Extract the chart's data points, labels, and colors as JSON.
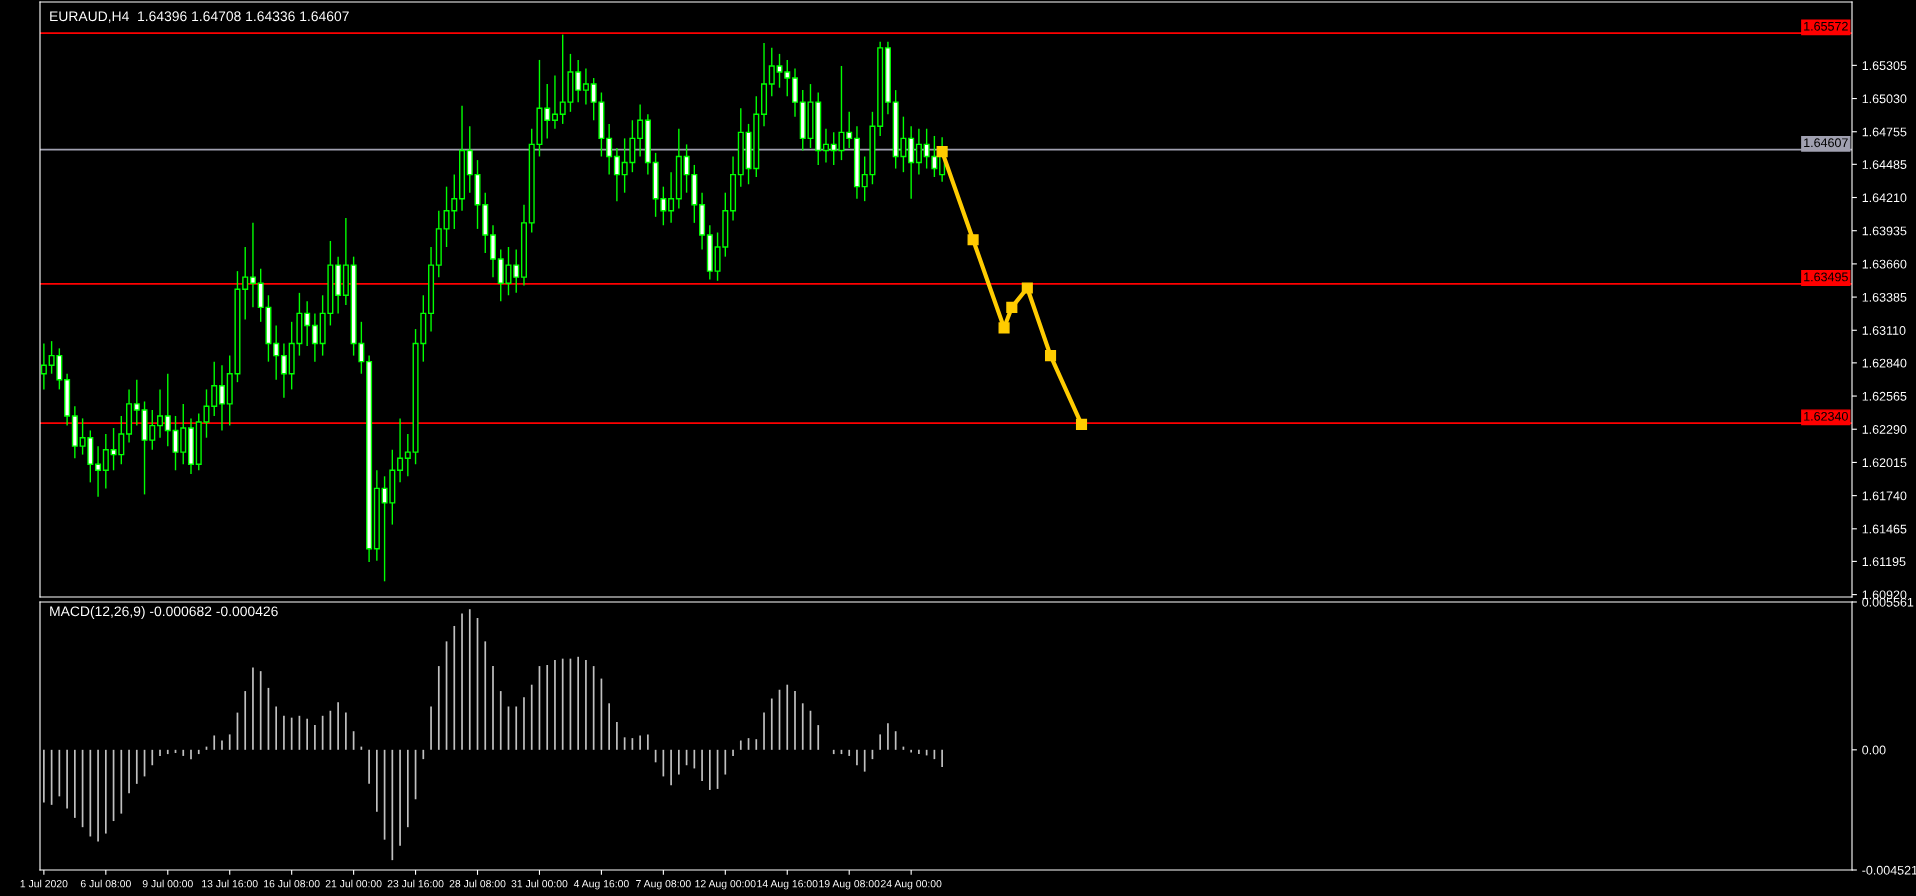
{
  "chart_data": [
    {
      "type": "candlestick",
      "title": "EURAUD,H4  1.64396 1.64708 1.64336 1.64607",
      "color": "#00ff00",
      "marker": "square",
      "grid": false,
      "legend": false,
      "tick_labels": "y",
      "categories": [
        null,
        null,
        null,
        null,
        null,
        null,
        null,
        null,
        null,
        null,
        null,
        null,
        null,
        null,
        null,
        null,
        null,
        null,
        null,
        null,
        null,
        null,
        null,
        null,
        null,
        null,
        null,
        null,
        null,
        null,
        null,
        null,
        null,
        null,
        null,
        null,
        null,
        null,
        null,
        null,
        null,
        null,
        null,
        null,
        null,
        null,
        null,
        null,
        null,
        null,
        null,
        null,
        null,
        null,
        null,
        null,
        null,
        null,
        null,
        null,
        null,
        null,
        null,
        null,
        null,
        null,
        null,
        null,
        null,
        null,
        null,
        null,
        null,
        null,
        null,
        null,
        null,
        null,
        null,
        null,
        null,
        null,
        null,
        null,
        null,
        null,
        null,
        null,
        null,
        null,
        null,
        null,
        null,
        null,
        null,
        null,
        null,
        null,
        null,
        null,
        null,
        null,
        null,
        null,
        null,
        null,
        null,
        null,
        null,
        null,
        null,
        null,
        null,
        null,
        null,
        null,
        null,
        null,
        null,
        null,
        null,
        null,
        null,
        null,
        null,
        null,
        null,
        null,
        null,
        null,
        null,
        null,
        null,
        null,
        null,
        null,
        null,
        null,
        null,
        null,
        null,
        null,
        null,
        null,
        null,
        null,
        null,
        null,
        null,
        null,
        null,
        null,
        null,
        null,
        null,
        null,
        null,
        null,
        null,
        null,
        null,
        null,
        null,
        null,
        null,
        null,
        null,
        null,
        null,
        null,
        null,
        null,
        null,
        null,
        null,
        null,
        null,
        null,
        null,
        null,
        null,
        null,
        null,
        null,
        null,
        null,
        null,
        null,
        null,
        null,
        null,
        null,
        null,
        null,
        null,
        null,
        null,
        null,
        null,
        null,
        null,
        null,
        null,
        null,
        null,
        null,
        null,
        null,
        null,
        null,
        null,
        null,
        null,
        null,
        null,
        null,
        null,
        null,
        null,
        null,
        null,
        null,
        null,
        null,
        null,
        null,
        null,
        null,
        null,
        null,
        null,
        null,
        null,
        null
      ],
      "ohlc": [
        [
          1.6275,
          1.63,
          1.6262,
          1.6282
        ],
        [
          1.6282,
          1.6302,
          1.6275,
          1.629
        ],
        [
          1.629,
          1.6296,
          1.6262,
          1.627
        ],
        [
          1.627,
          1.6275,
          1.6232,
          1.624
        ],
        [
          1.624,
          1.6248,
          1.6205,
          1.6215
        ],
        [
          1.6215,
          1.6238,
          1.6208,
          1.6222
        ],
        [
          1.6222,
          1.6228,
          1.6185,
          1.62
        ],
        [
          1.62,
          1.6215,
          1.6173,
          1.6195
        ],
        [
          1.6195,
          1.6225,
          1.618,
          1.6212
        ],
        [
          1.6212,
          1.623,
          1.6195,
          1.6208
        ],
        [
          1.6208,
          1.624,
          1.62,
          1.6225
        ],
        [
          1.6225,
          1.6262,
          1.6218,
          1.625
        ],
        [
          1.625,
          1.627,
          1.6232,
          1.6245
        ],
        [
          1.6245,
          1.6252,
          1.6175,
          1.622
        ],
        [
          1.622,
          1.6245,
          1.6212,
          1.6232
        ],
        [
          1.6232,
          1.6262,
          1.6222,
          1.624
        ],
        [
          1.624,
          1.6275,
          1.6215,
          1.6228
        ],
        [
          1.6228,
          1.624,
          1.6195,
          1.621
        ],
        [
          1.621,
          1.625,
          1.62,
          1.623
        ],
        [
          1.623,
          1.6238,
          1.6192,
          1.62
        ],
        [
          1.62,
          1.6242,
          1.6195,
          1.6235
        ],
        [
          1.6235,
          1.6262,
          1.6222,
          1.6248
        ],
        [
          1.6248,
          1.6285,
          1.624,
          1.6265
        ],
        [
          1.6265,
          1.6282,
          1.6228,
          1.625
        ],
        [
          1.625,
          1.629,
          1.6232,
          1.6275
        ],
        [
          1.6275,
          1.636,
          1.6268,
          1.6345
        ],
        [
          1.6345,
          1.638,
          1.632,
          1.6355
        ],
        [
          1.6355,
          1.64,
          1.633,
          1.635
        ],
        [
          1.635,
          1.6362,
          1.6318,
          1.633
        ],
        [
          1.633,
          1.634,
          1.6285,
          1.63
        ],
        [
          1.63,
          1.6315,
          1.627,
          1.629
        ],
        [
          1.629,
          1.63,
          1.6255,
          1.6275
        ],
        [
          1.6275,
          1.6318,
          1.6262,
          1.63
        ],
        [
          1.63,
          1.6342,
          1.629,
          1.6325
        ],
        [
          1.6325,
          1.6335,
          1.6298,
          1.6315
        ],
        [
          1.6315,
          1.6325,
          1.6285,
          1.63
        ],
        [
          1.63,
          1.634,
          1.629,
          1.6325
        ],
        [
          1.6325,
          1.6385,
          1.6315,
          1.6365
        ],
        [
          1.6365,
          1.6372,
          1.6325,
          1.634
        ],
        [
          1.634,
          1.6404,
          1.6332,
          1.6365
        ],
        [
          1.6365,
          1.6372,
          1.629,
          1.63
        ],
        [
          1.63,
          1.6318,
          1.6275,
          1.6285
        ],
        [
          1.6285,
          1.629,
          1.6119,
          1.613
        ],
        [
          1.613,
          1.6195,
          1.612,
          1.618
        ],
        [
          1.618,
          1.619,
          1.6103,
          1.6168
        ],
        [
          1.6168,
          1.6212,
          1.615,
          1.6195
        ],
        [
          1.6195,
          1.6238,
          1.6185,
          1.6205
        ],
        [
          1.6205,
          1.6225,
          1.619,
          1.621
        ],
        [
          1.621,
          1.6312,
          1.62,
          1.63
        ],
        [
          1.63,
          1.634,
          1.6285,
          1.6325
        ],
        [
          1.6325,
          1.638,
          1.631,
          1.6365
        ],
        [
          1.6365,
          1.641,
          1.6355,
          1.6395
        ],
        [
          1.6395,
          1.643,
          1.638,
          1.641
        ],
        [
          1.641,
          1.644,
          1.6395,
          1.642
        ],
        [
          1.642,
          1.6497,
          1.641,
          1.646
        ],
        [
          1.646,
          1.648,
          1.6425,
          1.644
        ],
        [
          1.644,
          1.6452,
          1.6395,
          1.6415
        ],
        [
          1.6415,
          1.6425,
          1.6375,
          1.639
        ],
        [
          1.639,
          1.6398,
          1.6355,
          1.637
        ],
        [
          1.637,
          1.6378,
          1.6335,
          1.635
        ],
        [
          1.635,
          1.638,
          1.634,
          1.6365
        ],
        [
          1.6365,
          1.6378,
          1.6342,
          1.6355
        ],
        [
          1.6355,
          1.6415,
          1.6348,
          1.64
        ],
        [
          1.64,
          1.6478,
          1.6392,
          1.6465
        ],
        [
          1.6465,
          1.6535,
          1.6455,
          1.6495
        ],
        [
          1.6495,
          1.6515,
          1.647,
          1.6485
        ],
        [
          1.6485,
          1.6522,
          1.6478,
          1.649
        ],
        [
          1.649,
          1.6556,
          1.6482,
          1.65
        ],
        [
          1.65,
          1.654,
          1.6492,
          1.6525
        ],
        [
          1.6525,
          1.6535,
          1.65,
          1.651
        ],
        [
          1.651,
          1.6528,
          1.6498,
          1.6515
        ],
        [
          1.6515,
          1.652,
          1.6485,
          1.65
        ],
        [
          1.65,
          1.6508,
          1.6455,
          1.647
        ],
        [
          1.647,
          1.6482,
          1.644,
          1.6455
        ],
        [
          1.6455,
          1.6462,
          1.6418,
          1.644
        ],
        [
          1.644,
          1.647,
          1.6425,
          1.645
        ],
        [
          1.645,
          1.6485,
          1.6442,
          1.647
        ],
        [
          1.647,
          1.6498,
          1.6455,
          1.6485
        ],
        [
          1.6485,
          1.649,
          1.644,
          1.645
        ],
        [
          1.645,
          1.6458,
          1.6405,
          1.642
        ],
        [
          1.642,
          1.643,
          1.6398,
          1.641
        ],
        [
          1.641,
          1.6442,
          1.64,
          1.642
        ],
        [
          1.642,
          1.6478,
          1.6412,
          1.6455
        ],
        [
          1.6455,
          1.6465,
          1.6425,
          1.644
        ],
        [
          1.644,
          1.6448,
          1.64,
          1.6415
        ],
        [
          1.6415,
          1.6425,
          1.6378,
          1.639
        ],
        [
          1.639,
          1.6398,
          1.6353,
          1.636
        ],
        [
          1.636,
          1.6392,
          1.6352,
          1.638
        ],
        [
          1.638,
          1.6425,
          1.6372,
          1.641
        ],
        [
          1.641,
          1.6455,
          1.6402,
          1.644
        ],
        [
          1.644,
          1.6495,
          1.643,
          1.6475
        ],
        [
          1.6475,
          1.6482,
          1.6432,
          1.6445
        ],
        [
          1.6445,
          1.6505,
          1.6438,
          1.649
        ],
        [
          1.649,
          1.6549,
          1.648,
          1.6515
        ],
        [
          1.6515,
          1.6545,
          1.6505,
          1.653
        ],
        [
          1.653,
          1.654,
          1.6512,
          1.6525
        ],
        [
          1.6525,
          1.6535,
          1.6505,
          1.652
        ],
        [
          1.652,
          1.6528,
          1.6488,
          1.65
        ],
        [
          1.65,
          1.651,
          1.646,
          1.647
        ],
        [
          1.647,
          1.6515,
          1.6462,
          1.65
        ],
        [
          1.65,
          1.6508,
          1.6448,
          1.646
        ],
        [
          1.646,
          1.6478,
          1.645,
          1.6465
        ],
        [
          1.6465,
          1.6475,
          1.6448,
          1.646
        ],
        [
          1.646,
          1.653,
          1.6452,
          1.6475
        ],
        [
          1.6475,
          1.6492,
          1.6462,
          1.647
        ],
        [
          1.647,
          1.648,
          1.642,
          1.643
        ],
        [
          1.643,
          1.6455,
          1.6418,
          1.644
        ],
        [
          1.644,
          1.6492,
          1.6432,
          1.648
        ],
        [
          1.648,
          1.655,
          1.6472,
          1.6545
        ],
        [
          1.6545,
          1.655,
          1.649,
          1.65
        ],
        [
          1.65,
          1.651,
          1.6445,
          1.6455
        ],
        [
          1.6455,
          1.6488,
          1.6442,
          1.647
        ],
        [
          1.647,
          1.648,
          1.642,
          1.645
        ],
        [
          1.645,
          1.6478,
          1.644,
          1.6465
        ],
        [
          1.6465,
          1.6478,
          1.6445,
          1.6455
        ],
        [
          1.6455,
          1.6472,
          1.6438,
          1.6445
        ],
        [
          1.644,
          1.6471,
          1.6434,
          1.6461
        ],
        null,
        null,
        null,
        null,
        null,
        null,
        null,
        null,
        null,
        null,
        null,
        null,
        null,
        null,
        null,
        null,
        null,
        null,
        null,
        null,
        null,
        null,
        null,
        null,
        null,
        null,
        null,
        null,
        null,
        null,
        null,
        null,
        null,
        null,
        null,
        null,
        null,
        null,
        null,
        null,
        null,
        null,
        null,
        null,
        null,
        null,
        null,
        null,
        null,
        null,
        null,
        null,
        null,
        null,
        null,
        null,
        null,
        null,
        null,
        null,
        null,
        null,
        null,
        null,
        null,
        null,
        null,
        null,
        null,
        null,
        null,
        null,
        null,
        null,
        null,
        null,
        null,
        null,
        null,
        null,
        null,
        null,
        null,
        null,
        null,
        null,
        null,
        null,
        null,
        null,
        null,
        null,
        null,
        null,
        null,
        null,
        null,
        null,
        null,
        null,
        null,
        null,
        null,
        null,
        null,
        null,
        null,
        null,
        null,
        null,
        null,
        null,
        null,
        null,
        null,
        null,
        null
      ],
      "series": [
        {
          "type": "line",
          "color": "#ffcc00",
          "values": [
            null,
            null,
            null,
            null,
            null,
            null,
            null,
            null,
            null,
            null,
            null,
            null,
            null,
            null,
            null,
            null,
            null,
            null,
            null,
            null,
            null,
            null,
            null,
            null,
            null,
            null,
            null,
            null,
            null,
            null,
            null,
            null,
            null,
            null,
            null,
            null,
            null,
            null,
            null,
            null,
            null,
            null,
            null,
            null,
            null,
            null,
            null,
            null,
            null,
            null,
            null,
            null,
            null,
            null,
            null,
            null,
            null,
            null,
            null,
            null,
            null,
            null,
            null,
            null,
            null,
            null,
            null,
            null,
            null,
            null,
            null,
            null,
            null,
            null,
            null,
            null,
            null,
            null,
            null,
            null,
            null,
            null,
            null,
            null,
            null,
            null,
            null,
            null,
            null,
            null,
            null,
            null,
            null,
            null,
            null,
            null,
            null,
            null,
            null,
            null,
            null,
            null,
            null,
            null,
            null,
            null,
            null,
            null,
            null,
            null,
            null,
            null,
            null,
            null,
            null,
            null,
            1.6459,
            null,
            null,
            null,
            1.6386,
            null,
            null,
            null,
            1.6313,
            1.633,
            null,
            1.6346,
            null,
            null,
            1.629,
            null,
            null,
            null,
            1.6233,
            null,
            null,
            null,
            null,
            null,
            null,
            null,
            null,
            null,
            null,
            null,
            null,
            null,
            null,
            null,
            null,
            null,
            null,
            null,
            null,
            null,
            null,
            null,
            null,
            null,
            null,
            null,
            null,
            null,
            null,
            null,
            null,
            null,
            null,
            null,
            null,
            null,
            null,
            null,
            null,
            null,
            null,
            null,
            null,
            null,
            null,
            null,
            null,
            null,
            null,
            null,
            null,
            null,
            null,
            null,
            null,
            null,
            null,
            null,
            null,
            null,
            null,
            null,
            null,
            null,
            null,
            null,
            null,
            null,
            null,
            null,
            null,
            null,
            null,
            null,
            null,
            null,
            null,
            null,
            null,
            null,
            null,
            null,
            null,
            null,
            null,
            null,
            null,
            null,
            null,
            null,
            null,
            null,
            null,
            null,
            null,
            null,
            null,
            null
          ]
        }
      ],
      "ylim": [
        1.609,
        1.6583
      ],
      "yticks": [
        {
          "value": 1.6092,
          "label": "1.60920"
        },
        1.61195,
        1.61465,
        {
          "value": 1.6174,
          "label": "1.61740"
        },
        1.62015,
        {
          "value": 1.6229,
          "label": "1.62290"
        },
        1.62565,
        {
          "value": 1.6284,
          "label": "1.62840"
        },
        {
          "value": 1.6311,
          "label": "1.63110"
        },
        1.63385,
        {
          "value": 1.6366,
          "label": "1.63660"
        },
        1.63935,
        {
          "value": 1.6421,
          "label": "1.64210"
        },
        1.64485,
        1.64755,
        {
          "value": 1.6503,
          "label": "1.65030"
        },
        1.65305
      ],
      "ref_lines": [
        {
          "axis": "y",
          "value": 1.65572,
          "label": "1.65572",
          "color": "#ff0000"
        },
        {
          "axis": "y",
          "value": 1.63495,
          "label": "1.63495",
          "color": "#ff0000"
        },
        {
          "axis": "y",
          "value": 1.6234,
          "label": "1.62340",
          "color": "#ff0000"
        },
        {
          "axis": "y",
          "value": 1.64607,
          "label": "1.64607",
          "color": "#a0a0b0"
        }
      ]
    },
    {
      "type": "bar",
      "title": "MACD(12,26,9) -0.000682 -0.000426",
      "color": "#c0c0c0",
      "grid": false,
      "legend": false,
      "categories": [
        "1 Jul 2020",
        null,
        null,
        null,
        null,
        null,
        null,
        null,
        "6 Jul 08:00",
        null,
        null,
        null,
        null,
        null,
        null,
        null,
        "9 Jul 00:00",
        null,
        null,
        null,
        null,
        null,
        null,
        null,
        "13 Jul 16:00",
        null,
        null,
        null,
        null,
        null,
        null,
        null,
        "16 Jul 08:00",
        null,
        null,
        null,
        null,
        null,
        null,
        null,
        "21 Jul 00:00",
        null,
        null,
        null,
        null,
        null,
        null,
        null,
        "23 Jul 16:00",
        null,
        null,
        null,
        null,
        null,
        null,
        null,
        "28 Jul 08:00",
        null,
        null,
        null,
        null,
        null,
        null,
        null,
        "31 Jul 00:00",
        null,
        null,
        null,
        null,
        null,
        null,
        null,
        "4 Aug 16:00",
        null,
        null,
        null,
        null,
        null,
        null,
        null,
        "7 Aug 08:00",
        null,
        null,
        null,
        null,
        null,
        null,
        null,
        "12 Aug 00:00",
        null,
        null,
        null,
        null,
        null,
        null,
        null,
        "14 Aug 16:00",
        null,
        null,
        null,
        null,
        null,
        null,
        null,
        "19 Aug 08:00",
        null,
        null,
        null,
        null,
        null,
        null,
        null,
        "24 Aug 00:00",
        null,
        null,
        null,
        null,
        null,
        null,
        null,
        null,
        null,
        null,
        null,
        null,
        null,
        null,
        null,
        null,
        null,
        null,
        null,
        null,
        null,
        null,
        null,
        null,
        null,
        null,
        null,
        null,
        null,
        null,
        null,
        null,
        null,
        null,
        null,
        null,
        null,
        null,
        null,
        null,
        null,
        null,
        null,
        null,
        null,
        null,
        null,
        null,
        null,
        null,
        null,
        null,
        null,
        null,
        null,
        null,
        null,
        null,
        null,
        null,
        null,
        null,
        null,
        null,
        null,
        null,
        null,
        null,
        null,
        null,
        null,
        null,
        null,
        null,
        null,
        null,
        null,
        null,
        null,
        null,
        null,
        null,
        null,
        null,
        null,
        null,
        null,
        null,
        null,
        null,
        null,
        null,
        null,
        null,
        null,
        null,
        null,
        null,
        null,
        null,
        null,
        null,
        null,
        null,
        null,
        null,
        null,
        null,
        null,
        null,
        null,
        null,
        null,
        null,
        null,
        null,
        null,
        null,
        null,
        null,
        null
      ],
      "values": [
        -0.00198,
        -0.00207,
        -0.00175,
        -0.00221,
        -0.00256,
        -0.00291,
        -0.00326,
        -0.00345,
        -0.00315,
        -0.00268,
        -0.0024,
        -0.00163,
        -0.00128,
        -0.001,
        -0.00058,
        -0.00023,
        -0.00016,
        -0.00012,
        -0.00023,
        -0.00035,
        -0.00016,
        0.00012,
        0.00054,
        0.00035,
        0.00058,
        0.0014,
        0.00221,
        0.0031,
        0.00296,
        0.00233,
        0.00163,
        0.00128,
        0.00121,
        0.00128,
        0.00117,
        0.00093,
        0.00128,
        0.00147,
        0.00179,
        0.0014,
        0.0007,
        0.00012,
        -0.00128,
        -0.00233,
        -0.00338,
        -0.00415,
        -0.00361,
        -0.00291,
        -0.00186,
        -0.00035,
        0.00163,
        0.00315,
        0.00408,
        0.00466,
        0.00513,
        0.00529,
        0.00496,
        0.00408,
        0.00315,
        0.00221,
        0.00163,
        0.00163,
        0.00198,
        0.00245,
        0.00315,
        0.00319,
        0.00338,
        0.00343,
        0.00343,
        0.0035,
        0.00338,
        0.00315,
        0.00268,
        0.00175,
        0.00105,
        0.00047,
        0.00044,
        0.00054,
        0.00058,
        -0.00047,
        -0.001,
        -0.00133,
        -0.00093,
        -0.00058,
        -0.0007,
        -0.00117,
        -0.00151,
        -0.00147,
        -0.00093,
        -0.00023,
        0.00035,
        0.00044,
        0.0004,
        0.0014,
        0.00193,
        0.00226,
        0.00245,
        0.00221,
        0.00175,
        0.00147,
        0.00093,
        0,
        -0.00016,
        -0.00016,
        -0.00023,
        -0.00058,
        -0.00082,
        -0.00035,
        0.00058,
        0.001,
        0.0007,
        0.00012,
        -0.0001,
        -0.00016,
        -0.00021,
        -0.00035,
        -0.00065,
        null,
        null,
        null,
        null,
        null,
        null,
        null,
        null,
        null,
        null,
        null,
        null,
        null,
        null,
        null,
        null,
        null,
        null,
        null,
        null,
        null,
        null,
        null,
        null,
        null,
        null,
        null,
        null,
        null,
        null,
        null,
        null,
        null,
        null,
        null,
        null,
        null,
        null,
        null,
        null,
        null,
        null,
        null,
        null,
        null,
        null,
        null,
        null,
        null,
        null,
        null,
        null,
        null,
        null,
        null,
        null,
        null,
        null,
        null,
        null,
        null,
        null,
        null,
        null,
        null,
        null,
        null,
        null,
        null,
        null,
        null,
        null,
        null,
        null,
        null,
        null,
        null,
        null,
        null,
        null,
        null,
        null,
        null,
        null,
        null,
        null,
        null,
        null,
        null,
        null,
        null,
        null,
        null,
        null,
        null,
        null,
        null,
        null,
        null,
        null,
        null,
        null,
        null,
        null,
        null,
        null,
        null,
        null,
        null,
        null,
        null,
        null,
        null,
        null,
        null,
        null,
        null
      ],
      "ylim": [
        -0.004521,
        0.005561
      ],
      "yticks": [
        -0.004521,
        {
          "value": 0,
          "label": "0.00"
        },
        0.005561
      ]
    }
  ]
}
